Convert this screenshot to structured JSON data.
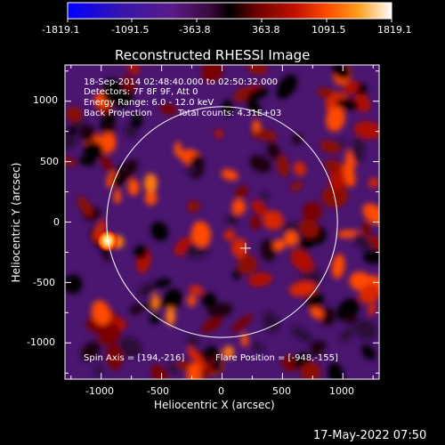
{
  "chart_data": {
    "type": "heatmap",
    "title": "Reconstructed RHESSI Image",
    "xlabel": "Heliocentric X (arcsec)",
    "ylabel": "Heliocentric Y (arcsec)",
    "xlim": [
      -1300,
      1300
    ],
    "ylim": [
      -1300,
      1300
    ],
    "x_ticks": [
      -1000,
      -500,
      0,
      500,
      1000
    ],
    "y_ticks": [
      1000,
      500,
      0,
      -500,
      -1000
    ],
    "colorbar": {
      "range": [
        -1819.1,
        1819.1
      ],
      "tick_labels": [
        "-1819.1",
        "-1091.5",
        "-363.8",
        "363.8",
        "1091.5",
        "1819.1"
      ],
      "colors": [
        "#0000ff",
        "#3a16a8",
        "#5a1a8a",
        "#3a0a3a",
        "#000000",
        "#6a0000",
        "#c01000",
        "#ff4a00",
        "#ffa020",
        "#ffffff"
      ]
    },
    "annotations": {
      "time_range": "18-Sep-2014 02:48:40.000 to 02:50:32.000",
      "detectors": "Detectors: 7F 8F 9F, Att 0",
      "energy_range": "Energy Range: 6.0 - 12.0 keV",
      "method": "Back Projection",
      "total_counts": "Total counts: 4.31E+03",
      "spin_axis": "Spin Axis = [194,-216]",
      "flare_position": "Flare Position = [-948,-155]"
    },
    "spin_axis_xy": [
      194,
      -216
    ],
    "flare_position_xy": [
      -948,
      -155
    ],
    "solar_limb_radius_arcsec": 955
  },
  "footer": {
    "date": "17-May-2022 07:50"
  }
}
